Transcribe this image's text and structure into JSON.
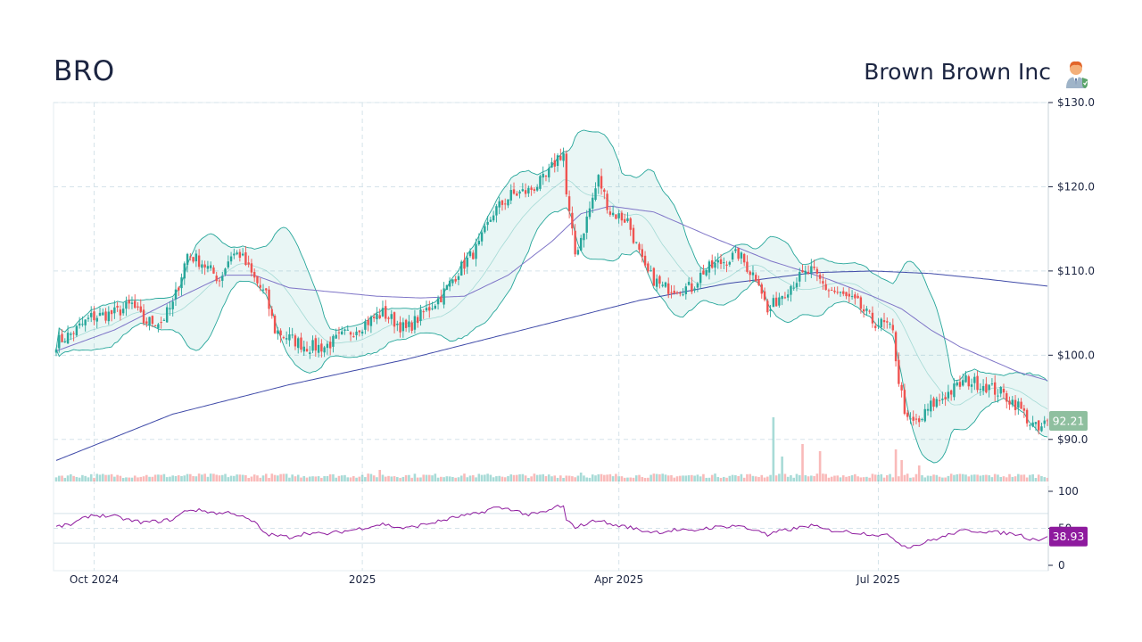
{
  "header": {
    "ticker": "BRO",
    "company": "Brown Brown Inc"
  },
  "icons": {
    "avatar": "businessman-shield-icon"
  },
  "colors": {
    "up": "#26a69a",
    "down": "#ef5350",
    "band": "#26a69a",
    "ma_short": "#7e74c7",
    "ma_long": "#3f4aa8",
    "rsi": "#8e1a9e",
    "price_badge": "#8fbf9f",
    "rsi_badge": "#8e1a9e"
  },
  "chart_data": {
    "type": "candlestick",
    "y_axis": {
      "min": 85,
      "max": 130,
      "ticks": [
        "$130.0",
        "$120.0",
        "$110.0",
        "$100.0",
        "$90.0"
      ],
      "tick_values": [
        130,
        120,
        110,
        100,
        90
      ]
    },
    "x_axis": {
      "ticks": [
        "Oct 2024",
        "2025",
        "Apr 2025",
        "Jul 2025"
      ]
    },
    "grid": true,
    "last_price": "92.21",
    "rsi": {
      "min": 0,
      "max": 100,
      "ticks": [
        "100",
        "50",
        "0"
      ],
      "tick_values": [
        100,
        50,
        0
      ],
      "last": "38.93"
    },
    "close_anchors": [
      [
        0,
        101.5
      ],
      [
        5,
        102.5
      ],
      [
        12,
        104.5
      ],
      [
        20,
        105
      ],
      [
        26,
        106
      ],
      [
        30,
        104
      ],
      [
        36,
        104
      ],
      [
        40,
        106
      ],
      [
        45,
        112
      ],
      [
        50,
        111
      ],
      [
        56,
        109
      ],
      [
        60,
        112
      ],
      [
        63,
        112
      ],
      [
        68,
        109
      ],
      [
        72,
        107
      ],
      [
        75,
        103
      ],
      [
        80,
        102
      ],
      [
        86,
        101
      ],
      [
        92,
        101
      ],
      [
        97,
        102
      ],
      [
        102,
        103
      ],
      [
        107,
        104
      ],
      [
        112,
        105
      ],
      [
        116,
        104
      ],
      [
        120,
        103
      ],
      [
        126,
        105
      ],
      [
        132,
        107
      ],
      [
        138,
        110
      ],
      [
        145,
        113
      ],
      [
        150,
        117
      ],
      [
        156,
        119
      ],
      [
        162,
        119.5
      ],
      [
        168,
        121
      ],
      [
        172,
        123.5
      ],
      [
        174,
        124
      ],
      [
        175,
        119
      ],
      [
        178,
        112
      ],
      [
        181,
        115
      ],
      [
        186,
        121
      ],
      [
        190,
        117
      ],
      [
        196,
        116
      ],
      [
        202,
        110
      ],
      [
        208,
        108
      ],
      [
        212,
        108
      ],
      [
        218,
        108
      ],
      [
        222,
        110
      ],
      [
        228,
        111
      ],
      [
        234,
        112
      ],
      [
        238,
        110
      ],
      [
        241,
        109
      ],
      [
        244,
        105
      ],
      [
        248,
        107
      ],
      [
        254,
        109
      ],
      [
        259,
        110
      ],
      [
        264,
        108
      ],
      [
        270,
        107
      ],
      [
        275,
        106
      ],
      [
        280,
        104
      ],
      [
        285,
        103.5
      ],
      [
        287,
        102.5
      ],
      [
        289,
        97
      ],
      [
        292,
        92
      ],
      [
        296,
        92
      ],
      [
        300,
        94
      ],
      [
        304,
        95
      ],
      [
        308,
        96
      ],
      [
        312,
        97
      ],
      [
        318,
        96.5
      ],
      [
        324,
        95.5
      ],
      [
        330,
        94
      ],
      [
        334,
        92
      ],
      [
        337,
        91
      ],
      [
        340,
        92.2
      ]
    ],
    "ma_short_anchors": [
      [
        0,
        100.5
      ],
      [
        20,
        103
      ],
      [
        40,
        106.5
      ],
      [
        58,
        109.5
      ],
      [
        68,
        109.5
      ],
      [
        80,
        108
      ],
      [
        95,
        107.5
      ],
      [
        110,
        107
      ],
      [
        125,
        106.8
      ],
      [
        140,
        107
      ],
      [
        155,
        109.5
      ],
      [
        170,
        113.5
      ],
      [
        180,
        116.8
      ],
      [
        190,
        117.7
      ],
      [
        205,
        117
      ],
      [
        225,
        114
      ],
      [
        245,
        111.2
      ],
      [
        265,
        109
      ],
      [
        280,
        107
      ],
      [
        290,
        105.5
      ],
      [
        300,
        103
      ],
      [
        310,
        101
      ],
      [
        322,
        99.2
      ],
      [
        330,
        98
      ],
      [
        340,
        97
      ]
    ],
    "ma_long_anchors": [
      [
        0,
        87.5
      ],
      [
        40,
        93
      ],
      [
        80,
        96.5
      ],
      [
        120,
        99.5
      ],
      [
        160,
        103
      ],
      [
        200,
        106.5
      ],
      [
        230,
        108.5
      ],
      [
        260,
        109.8
      ],
      [
        280,
        110
      ],
      [
        300,
        109.7
      ],
      [
        320,
        109
      ],
      [
        340,
        108.2
      ]
    ],
    "rsi_anchors": [
      [
        0,
        52
      ],
      [
        5,
        55
      ],
      [
        12,
        68
      ],
      [
        20,
        66
      ],
      [
        26,
        60
      ],
      [
        30,
        58
      ],
      [
        36,
        60
      ],
      [
        40,
        62
      ],
      [
        45,
        75
      ],
      [
        50,
        74
      ],
      [
        56,
        70
      ],
      [
        60,
        72
      ],
      [
        68,
        58
      ],
      [
        72,
        42
      ],
      [
        80,
        38
      ],
      [
        86,
        44
      ],
      [
        92,
        42
      ],
      [
        97,
        45
      ],
      [
        102,
        48
      ],
      [
        107,
        52
      ],
      [
        112,
        56
      ],
      [
        116,
        52
      ],
      [
        120,
        50
      ],
      [
        126,
        55
      ],
      [
        132,
        60
      ],
      [
        138,
        66
      ],
      [
        145,
        70
      ],
      [
        150,
        78
      ],
      [
        156,
        76
      ],
      [
        162,
        68
      ],
      [
        168,
        72
      ],
      [
        172,
        80
      ],
      [
        174,
        79
      ],
      [
        175,
        60
      ],
      [
        178,
        52
      ],
      [
        181,
        55
      ],
      [
        186,
        62
      ],
      [
        190,
        55
      ],
      [
        196,
        52
      ],
      [
        202,
        46
      ],
      [
        208,
        45
      ],
      [
        212,
        48
      ],
      [
        218,
        46
      ],
      [
        222,
        50
      ],
      [
        228,
        52
      ],
      [
        234,
        54
      ],
      [
        238,
        48
      ],
      [
        241,
        48
      ],
      [
        244,
        40
      ],
      [
        248,
        46
      ],
      [
        254,
        50
      ],
      [
        259,
        54
      ],
      [
        264,
        48
      ],
      [
        270,
        46
      ],
      [
        275,
        44
      ],
      [
        280,
        42
      ],
      [
        285,
        40
      ],
      [
        287,
        38
      ],
      [
        289,
        30
      ],
      [
        292,
        25
      ],
      [
        296,
        28
      ],
      [
        300,
        34
      ],
      [
        304,
        38
      ],
      [
        308,
        44
      ],
      [
        312,
        47
      ],
      [
        318,
        46
      ],
      [
        324,
        44
      ],
      [
        330,
        42
      ],
      [
        334,
        36
      ],
      [
        337,
        35
      ],
      [
        340,
        38.93
      ]
    ]
  }
}
